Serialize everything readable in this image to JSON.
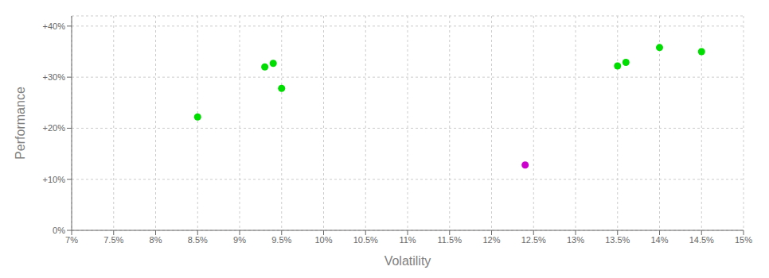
{
  "chart_data": {
    "type": "scatter",
    "xlabel": "Volatility",
    "ylabel": "Performance",
    "xlim": [
      0.07,
      0.15
    ],
    "ylim": [
      0.0,
      0.42
    ],
    "xticks": [
      {
        "value": 0.07,
        "label": "7%"
      },
      {
        "value": 0.075,
        "label": "7.5%"
      },
      {
        "value": 0.08,
        "label": "8%"
      },
      {
        "value": 0.085,
        "label": "8.5%"
      },
      {
        "value": 0.09,
        "label": "9%"
      },
      {
        "value": 0.095,
        "label": "9.5%"
      },
      {
        "value": 0.1,
        "label": "10%"
      },
      {
        "value": 0.105,
        "label": "10.5%"
      },
      {
        "value": 0.11,
        "label": "11%"
      },
      {
        "value": 0.115,
        "label": "11.5%"
      },
      {
        "value": 0.12,
        "label": "12%"
      },
      {
        "value": 0.125,
        "label": "12.5%"
      },
      {
        "value": 0.13,
        "label": "13%"
      },
      {
        "value": 0.135,
        "label": "13.5%"
      },
      {
        "value": 0.14,
        "label": "14%"
      },
      {
        "value": 0.145,
        "label": "14.5%"
      },
      {
        "value": 0.15,
        "label": "15%"
      }
    ],
    "yticks": [
      {
        "value": 0.0,
        "label": "0%"
      },
      {
        "value": 0.1,
        "label": "+10%"
      },
      {
        "value": 0.2,
        "label": "+20%"
      },
      {
        "value": 0.3,
        "label": "+30%"
      },
      {
        "value": 0.4,
        "label": "+40%"
      }
    ],
    "grid": true,
    "marker": "circle",
    "series": [
      {
        "color": "#00dd00",
        "x": [
          0.085,
          0.093,
          0.094,
          0.095,
          0.135,
          0.136,
          0.14,
          0.145
        ],
        "values": [
          0.222,
          0.32,
          0.327,
          0.278,
          0.322,
          0.329,
          0.358,
          0.35
        ]
      },
      {
        "color": "#cc00cc",
        "x": [
          0.124
        ],
        "values": [
          0.128
        ]
      }
    ]
  }
}
